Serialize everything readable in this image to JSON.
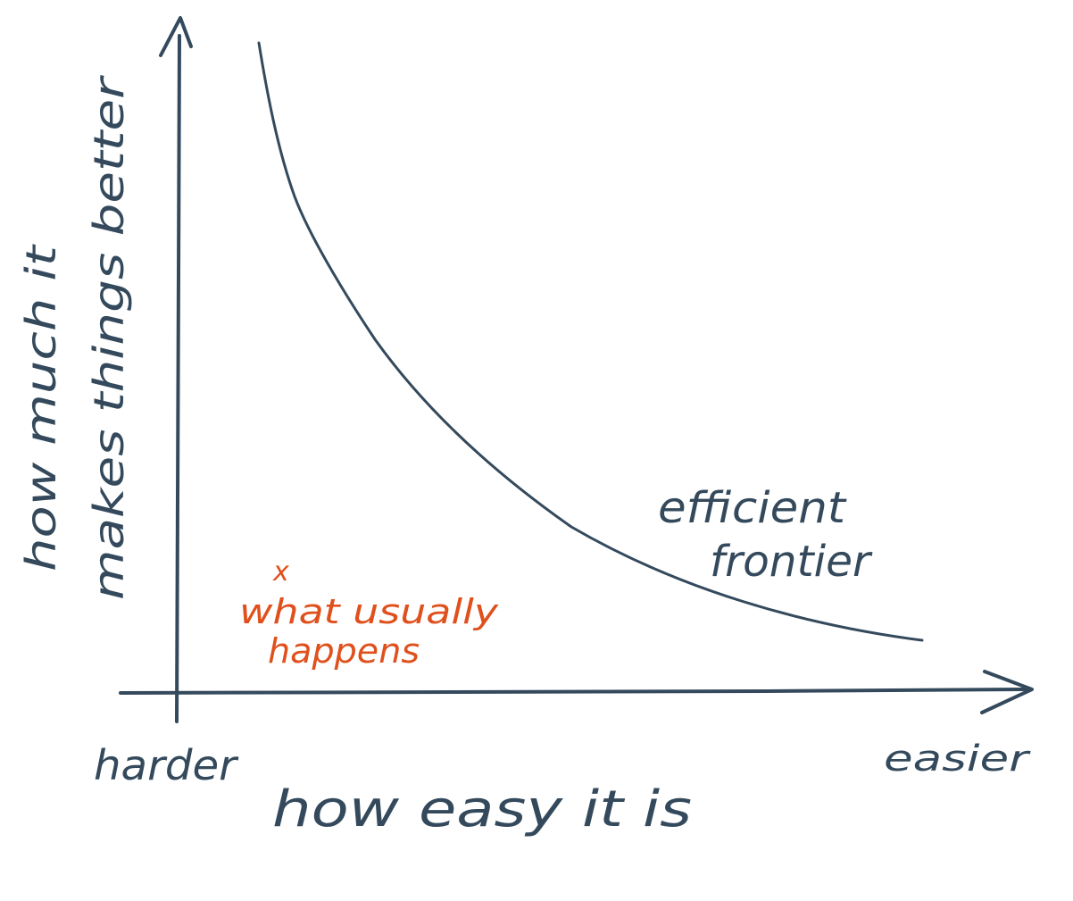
{
  "colors": {
    "ink": "#344a5c",
    "accent": "#e0501c",
    "background": "#ffffff"
  },
  "y_axis": {
    "label_line1": "how much it",
    "label_line2": "makes things better"
  },
  "x_axis": {
    "label": "how easy it is",
    "left_end_label": "harder",
    "right_end_label": "easier"
  },
  "curve": {
    "label_line1": "efficient",
    "label_line2": "frontier"
  },
  "marker": {
    "symbol": "x",
    "label_line1": "what usually",
    "label_line2": "happens"
  }
}
